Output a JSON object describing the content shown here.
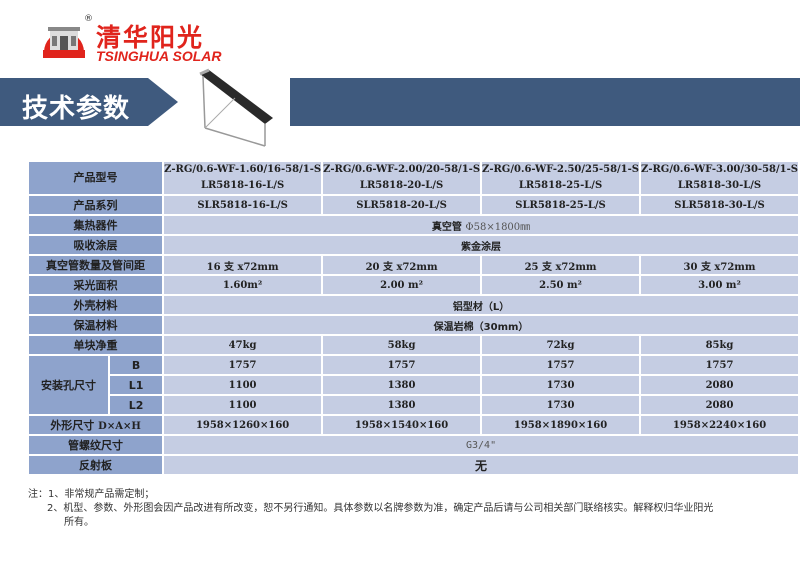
{
  "logo": {
    "cn": "清华阳光",
    "en": "TSINGHUA SOLAR",
    "badge_text": "清华阳光",
    "reg": "®"
  },
  "banner": {
    "title": "技术参数"
  },
  "colors": {
    "brand_red": "#e0241c",
    "banner_blue": "#3f5a7e",
    "label_bg": "#8ea3cc",
    "cell_bg": "#c5cde3"
  },
  "table": {
    "model": {
      "label": "产品型号",
      "values": [
        [
          "Z-RG/0.6-WF-1.60/16-58/1-S",
          "LR5818-16-L/S"
        ],
        [
          "Z-RG/0.6-WF-2.00/20-58/1-S",
          "LR5818-20-L/S"
        ],
        [
          "Z-RG/0.6-WF-2.50/25-58/1-S",
          "LR5818-25-L/S"
        ],
        [
          "Z-RG/0.6-WF-3.00/30-58/1-S",
          "LR5818-30-L/S"
        ]
      ]
    },
    "series": {
      "label": "产品系列",
      "values": [
        "SLR5818-16-L/S",
        "SLR5818-20-L/S",
        "SLR5818-25-L/S",
        "SLR5818-30-L/S"
      ]
    },
    "collector": {
      "label": "集热器件",
      "value_bold": "真空管",
      "value_spec": "Φ58×1800㎜"
    },
    "coating": {
      "label": "吸收涂层",
      "value": "紫金涂层"
    },
    "tubes": {
      "label": "真空管数量及管间距",
      "values": [
        [
          "16",
          "支",
          "x72mm"
        ],
        [
          "20",
          "支",
          "x72mm"
        ],
        [
          "25",
          "支",
          "x72mm"
        ],
        [
          "30",
          "支",
          "x72mm"
        ]
      ]
    },
    "area": {
      "label": "采光面积",
      "values": [
        "1.60m²",
        "2.00 m²",
        "2.50 m²",
        "3.00 m²"
      ]
    },
    "shell": {
      "label": "外壳材料",
      "value": "铝型材（L）"
    },
    "insulation": {
      "label": "保温材料",
      "value": "保温岩棉（30mm）"
    },
    "weight": {
      "label": "单块净重",
      "values": [
        "47kg",
        "58kg",
        "72kg",
        "85kg"
      ]
    },
    "mount": {
      "label": "安装孔尺寸",
      "rows": [
        {
          "label": "B",
          "values": [
            "1757",
            "1757",
            "1757",
            "1757"
          ]
        },
        {
          "label": "L1",
          "values": [
            "1100",
            "1380",
            "1730",
            "2080"
          ]
        },
        {
          "label": "L2",
          "values": [
            "1100",
            "1380",
            "1730",
            "2080"
          ]
        }
      ]
    },
    "dims": {
      "label": "外形尺寸",
      "label_suffix": "D×A×H",
      "values": [
        "1958×1260×160",
        "1958×1540×160",
        "1958×1890×160",
        "1958×2240×160"
      ]
    },
    "thread": {
      "label": "管螺纹尺寸",
      "value": "G3/4\""
    },
    "reflector": {
      "label": "反射板",
      "value": "无"
    }
  },
  "notes": {
    "prefix": "注：",
    "items": [
      "1、非常规产品需定制；",
      "2、机型、参数、外形图会因产品改进有所改变，恕不另行通知。具体参数以名牌参数为准，确定产品后请与公司相关部门联络核实。解释权归华业阳光"
    ],
    "item2_cont": "所有。"
  }
}
